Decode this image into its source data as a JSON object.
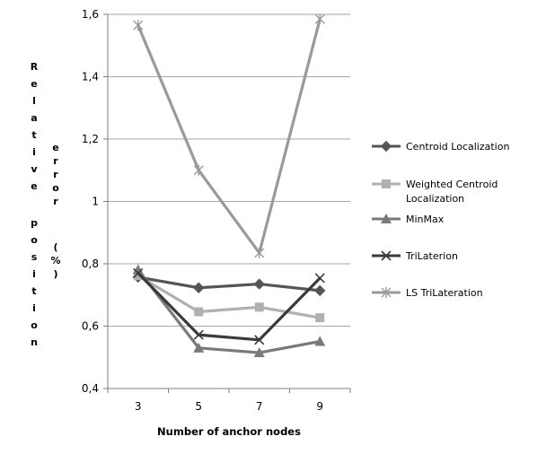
{
  "chart_data": {
    "type": "line",
    "title": "",
    "xlabel": "Number of anchor nodes",
    "ylabel_lines": [
      "Relative",
      "position",
      "error",
      "(%)"
    ],
    "categories": [
      "3",
      "5",
      "7",
      "9"
    ],
    "ylim": [
      0.4,
      1.6
    ],
    "yticks": [
      0.4,
      0.6,
      0.8,
      1.0,
      1.2,
      1.4,
      1.6
    ],
    "ytick_labels": [
      "0,4",
      "0,6",
      "0,8",
      "1",
      "1,2",
      "1,4",
      "1,6"
    ],
    "grid": "horizontal",
    "legend_position": "right",
    "series": [
      {
        "name": "Centroid Localization",
        "values": [
          0.757,
          0.723,
          0.735,
          0.714
        ],
        "color": "#555555",
        "marker": "diamond"
      },
      {
        "name": "Weighted Centroid Localization",
        "name_lines": [
          "Weighted Centroid",
          "Localization"
        ],
        "values": [
          0.762,
          0.646,
          0.661,
          0.627
        ],
        "color": "#b0b0b0",
        "marker": "square"
      },
      {
        "name": "MinMax",
        "values": [
          0.781,
          0.53,
          0.515,
          0.551
        ],
        "color": "#7a7a7a",
        "marker": "triangle"
      },
      {
        "name": "TriLaterion",
        "values": [
          0.77,
          0.572,
          0.556,
          0.754
        ],
        "color": "#3a3a3a",
        "marker": "x"
      },
      {
        "name": "LS TriLateration",
        "values": [
          1.565,
          1.1,
          0.835,
          1.585
        ],
        "color": "#9a9a9a",
        "marker": "star"
      }
    ]
  }
}
